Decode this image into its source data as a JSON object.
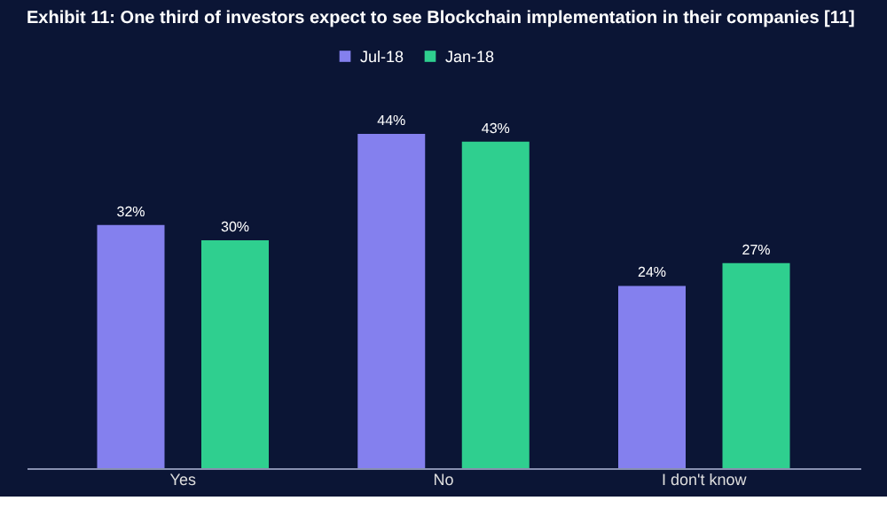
{
  "chart_data": {
    "type": "bar",
    "title": "Exhibit 11: One third of investors expect to see Blockchain implementation in their companies [11]",
    "categories": [
      "Yes",
      "No",
      "I don't know"
    ],
    "series": [
      {
        "name": "Jul-18",
        "color": "#8480ee",
        "values": [
          32,
          44,
          24
        ],
        "value_labels": [
          "32%",
          "44%",
          "24%"
        ]
      },
      {
        "name": "Jan-18",
        "color": "#2fcf8f",
        "values": [
          30,
          43,
          27
        ],
        "value_labels": [
          "30%",
          "43%",
          "27%"
        ]
      }
    ],
    "legend": "top",
    "grid": false
  }
}
